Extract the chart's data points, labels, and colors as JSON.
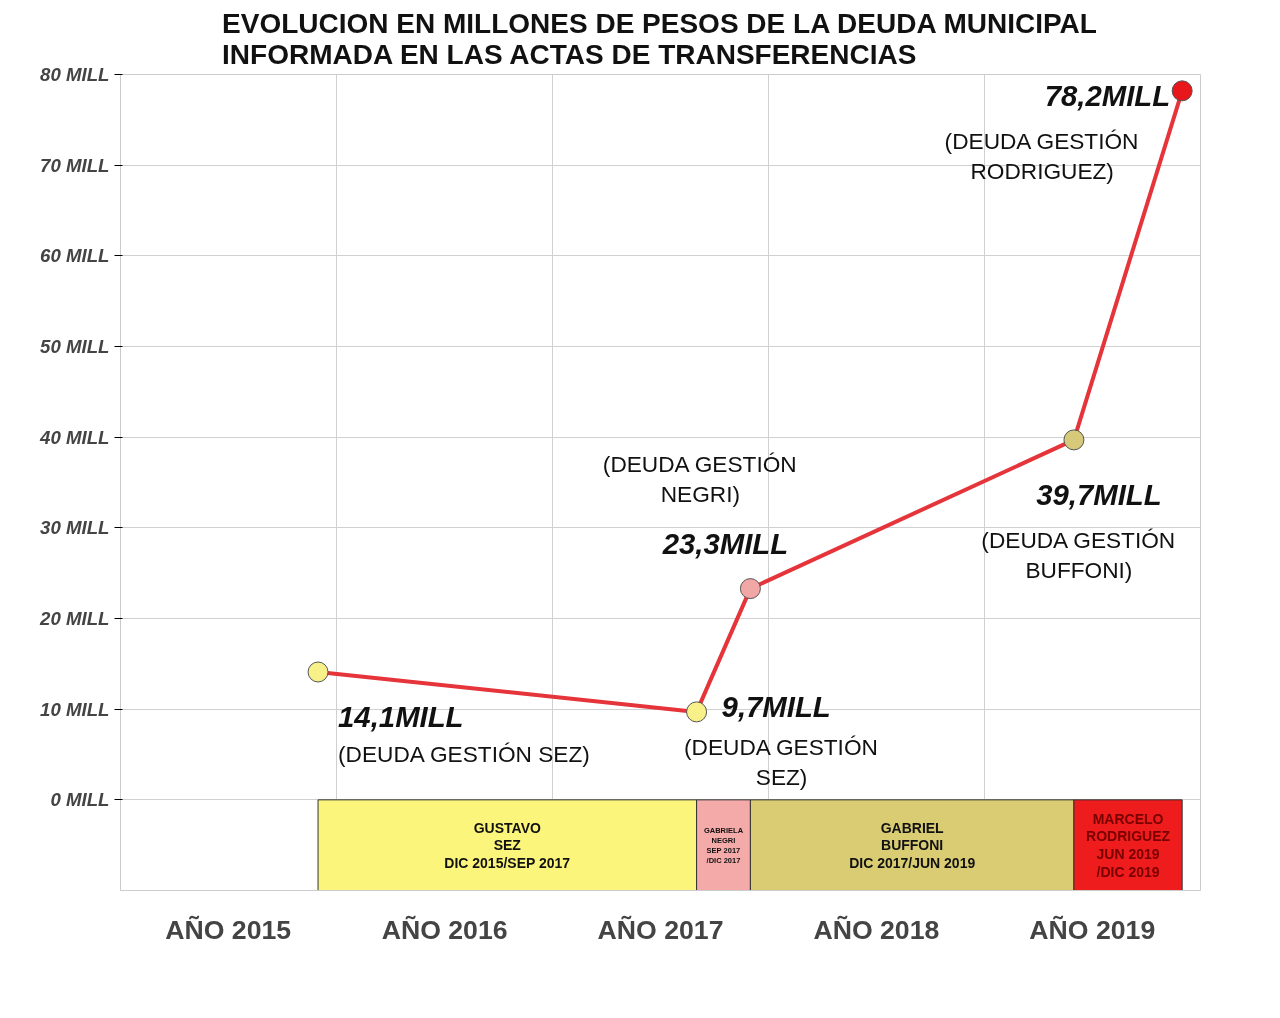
{
  "chart_data": {
    "type": "line",
    "title": "EVOLUCION EN MILLONES DE PESOS DE LA DEUDA MUNICIPAL\nINFORMADA EN LAS ACTAS DE TRANSFERENCIAS",
    "x": [
      "2015-12",
      "2017-09",
      "2017-12",
      "2019-06",
      "2019-12"
    ],
    "series": [
      {
        "color": "#e5343a",
        "colors": [
          "#f8f18a",
          "#f8f18a",
          "#f2a7a7",
          "#d6ca7a",
          "#e8171c"
        ],
        "values": [
          14.1,
          9.7,
          23.3,
          39.7,
          78.2
        ],
        "value_labels": [
          "14,1MILL",
          "9,7MILL",
          "23,3MILL",
          "39,7MILL",
          "78,2MILL"
        ]
      }
    ],
    "marker": "circle",
    "xlim": [
      "2015-01-01",
      "2020-01-01"
    ],
    "xticks": [
      {
        "value": "2015-07-02",
        "label": "AÑO 2015"
      },
      {
        "value": "2016-07-02",
        "label": "AÑO 2016"
      },
      {
        "value": "2017-07-02",
        "label": "AÑO 2017"
      },
      {
        "value": "2018-07-02",
        "label": "AÑO 2018"
      },
      {
        "value": "2019-07-02",
        "label": "AÑO 2019"
      },
      {
        "value": "2016-01-01",
        "label": null
      },
      {
        "value": "2017-01-01",
        "label": null
      },
      {
        "value": "2018-01-01",
        "label": null
      },
      {
        "value": "2019-01-01",
        "label": null
      }
    ],
    "ylim": [
      -10,
      80
    ],
    "yticks": [
      {
        "value": 0,
        "label": "0 MILL"
      },
      {
        "value": 10,
        "label": "10 MILL"
      },
      {
        "value": 20,
        "label": "20 MILL"
      },
      {
        "value": 30,
        "label": "30 MILL"
      },
      {
        "value": 40,
        "label": "40 MILL"
      },
      {
        "value": 50,
        "label": "50 MILL"
      },
      {
        "value": 60,
        "label": "60 MILL"
      },
      {
        "value": 70,
        "label": "70 MILL"
      },
      {
        "value": 80,
        "label": "80 MILL"
      }
    ],
    "grid": true,
    "annotations": [
      "(DEUDA GESTIÓN SEZ)",
      "(DEUDA GESTIÓN\nSEZ)",
      "(DEUDA GESTIÓN\nNEGRI)",
      "(DEUDA GESTIÓN\nBUFFONI)",
      "(DEUDA GESTIÓN\nRODRIGUEZ)"
    ],
    "bands": [
      {
        "axis": "x",
        "from": "2015-12",
        "to": "2017-09",
        "label": "GUSTAVO\nSEZ\nDIC 2015/SEP 2017",
        "color": "#fbf57c"
      },
      {
        "axis": "x",
        "from": "2017-09",
        "to": "2017-12",
        "label": "GABRIELA\nNEGRI\nSEP 2017\n/DIC 2017",
        "color": "#f4aaa9"
      },
      {
        "axis": "x",
        "from": "2017-12",
        "to": "2019-06",
        "label": "GABRIEL\nBUFFONI\nDIC 2017/JUN 2019",
        "color": "#d9cc72"
      },
      {
        "axis": "x",
        "from": "2019-06",
        "to": "2019-12",
        "label": "MARCELO\nRODRIGUEZ\nJUN 2019\n/DIC 2019",
        "color": "#ee1c1c"
      }
    ]
  }
}
